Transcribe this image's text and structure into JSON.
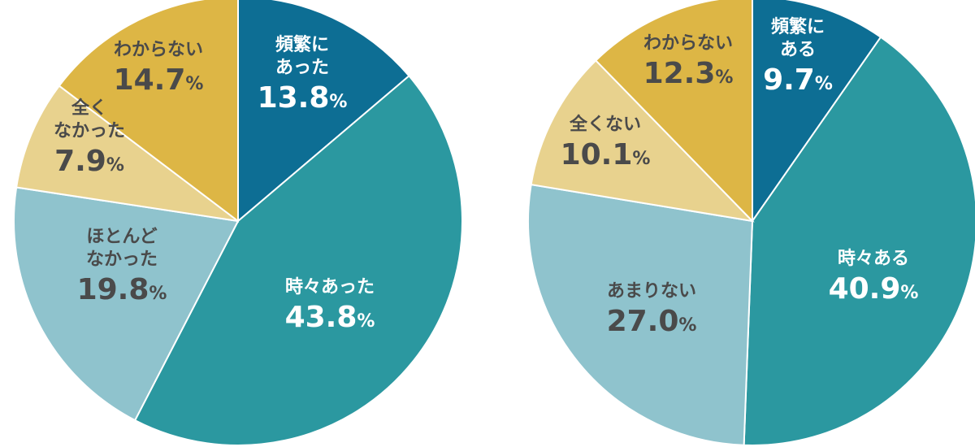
{
  "chart_data": [
    {
      "type": "pie",
      "start_angle_deg": 0,
      "direction": "clockwise",
      "slices": [
        {
          "label": "頻繁にあった",
          "lines": [
            "頻繁に",
            "あった"
          ],
          "value": 13.8,
          "value_text": "13.8",
          "unit": "%",
          "color": "#0d6e94",
          "text_color": "#ffffff"
        },
        {
          "label": "時々あった",
          "lines": [
            "時々あった"
          ],
          "value": 43.8,
          "value_text": "43.8",
          "unit": "%",
          "color": "#2b98a0",
          "text_color": "#ffffff"
        },
        {
          "label": "ほとんどなかった",
          "lines": [
            "ほとんど",
            "なかった"
          ],
          "value": 19.8,
          "value_text": "19.8",
          "unit": "%",
          "color": "#8fc3cd",
          "text_color": "#4a4a4a"
        },
        {
          "label": "全くなかった",
          "lines": [
            "全く",
            "なかった"
          ],
          "value": 7.9,
          "value_text": "7.9",
          "unit": "%",
          "color": "#e8d28e",
          "text_color": "#4a4a4a"
        },
        {
          "label": "わからない",
          "lines": [
            "わからない"
          ],
          "value": 14.7,
          "value_text": "14.7",
          "unit": "%",
          "color": "#ddb645",
          "text_color": "#4a4a4a"
        }
      ]
    },
    {
      "type": "pie",
      "start_angle_deg": 0,
      "direction": "clockwise",
      "slices": [
        {
          "label": "頻繁にある",
          "lines": [
            "頻繁に",
            "ある"
          ],
          "value": 9.7,
          "value_text": "9.7",
          "unit": "%",
          "color": "#0d6e94",
          "text_color": "#ffffff"
        },
        {
          "label": "時々ある",
          "lines": [
            "時々ある"
          ],
          "value": 40.9,
          "value_text": "40.9",
          "unit": "%",
          "color": "#2b98a0",
          "text_color": "#ffffff"
        },
        {
          "label": "あまりない",
          "lines": [
            "あまりない"
          ],
          "value": 27.0,
          "value_text": "27.0",
          "unit": "%",
          "color": "#8fc3cd",
          "text_color": "#4a4a4a"
        },
        {
          "label": "全くない",
          "lines": [
            "全くない"
          ],
          "value": 10.1,
          "value_text": "10.1",
          "unit": "%",
          "color": "#e8d28e",
          "text_color": "#4a4a4a"
        },
        {
          "label": "わからない",
          "lines": [
            "わからない"
          ],
          "value": 12.3,
          "value_text": "12.3",
          "unit": "%",
          "color": "#ddb645",
          "text_color": "#4a4a4a"
        }
      ]
    }
  ]
}
